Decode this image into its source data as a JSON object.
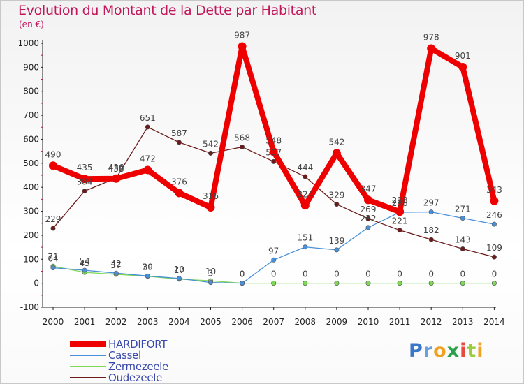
{
  "title": "Evolution du Montant de la Dette par Habitant",
  "unit_label": "(en €)",
  "brand": {
    "letters": [
      "P",
      "r",
      "o",
      "x",
      "i",
      "t",
      "i"
    ],
    "colors": [
      "#3a77c9",
      "#6aa0e0",
      "#f0a11e",
      "#2aa14b",
      "#e54a3c",
      "#9acb3c",
      "#f0a11e"
    ]
  },
  "chart_data": {
    "type": "line",
    "title": "Evolution du Montant de la Dette par Habitant",
    "ylabel": "(en €)",
    "xlabel": "",
    "ylim": [
      -100,
      1000
    ],
    "yticks": [
      -100,
      0,
      100,
      200,
      300,
      400,
      500,
      600,
      700,
      800,
      900,
      1000
    ],
    "x": [
      "2000",
      "2001",
      "2002",
      "2003",
      "2004",
      "2005",
      "2006",
      "2007",
      "2008",
      "2009",
      "2010",
      "2011",
      "2012",
      "2013",
      "2014"
    ],
    "grid": false,
    "legend_position": "bottom-left",
    "series": [
      {
        "name": "HARDIFORT",
        "color": "#ee0000",
        "values": [
          490,
          435,
          436,
          472,
          376,
          316,
          987,
          548,
          324,
          542,
          347,
          298,
          978,
          901,
          343
        ]
      },
      {
        "name": "Cassel",
        "color": "#4a90d9",
        "values": [
          64,
          54,
          42,
          30,
          20,
          3,
          0,
          97,
          151,
          139,
          232,
          296,
          297,
          271,
          246
        ]
      },
      {
        "name": "Zermezeele",
        "color": "#7ed957",
        "values": [
          71,
          45,
          37,
          29,
          17,
          10,
          0,
          0,
          0,
          0,
          0,
          0,
          0,
          0,
          0
        ]
      },
      {
        "name": "Oudezeele",
        "color": "#6b1b1b",
        "values": [
          229,
          384,
          438,
          651,
          587,
          542,
          568,
          507,
          444,
          329,
          269,
          221,
          182,
          143,
          109
        ]
      }
    ]
  }
}
